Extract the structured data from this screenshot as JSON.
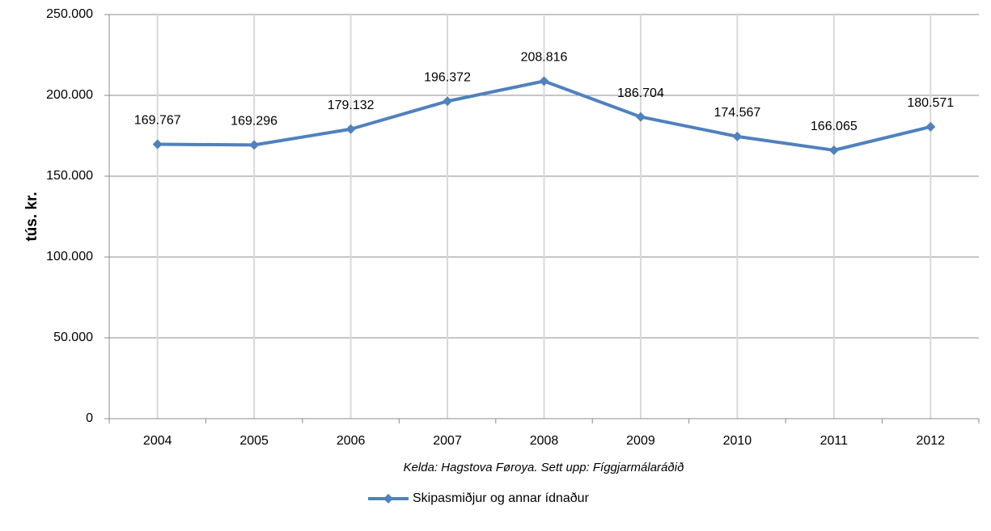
{
  "chart_data": {
    "type": "line",
    "y_label": "tús. kr.",
    "source": "Kelda: Hagstova Føroya. Sett upp: Fíggjarmálaráðið",
    "categories": [
      "2004",
      "2005",
      "2006",
      "2007",
      "2008",
      "2009",
      "2010",
      "2011",
      "2012"
    ],
    "series": [
      {
        "name": "Skipasmiðjur og annar ídnaður",
        "color": "#4f81bd",
        "values": [
          169767,
          169296,
          179132,
          196372,
          208816,
          186704,
          174567,
          166065,
          180571
        ],
        "value_labels": [
          "169.767",
          "169.296",
          "179.132",
          "196.372",
          "208.816",
          "186.704",
          "174.567",
          "166.065",
          "180.571"
        ]
      }
    ],
    "ylim": [
      0,
      250000
    ],
    "yticks": [
      0,
      {
        "value": 50000,
        "label": "50.000"
      },
      {
        "value": 100000,
        "label": "100.000"
      },
      {
        "value": 150000,
        "label": "150.000"
      },
      {
        "value": 200000,
        "label": "200.000"
      },
      {
        "value": 250000,
        "label": "250.000"
      }
    ],
    "grid": true,
    "legend": "bottom"
  }
}
